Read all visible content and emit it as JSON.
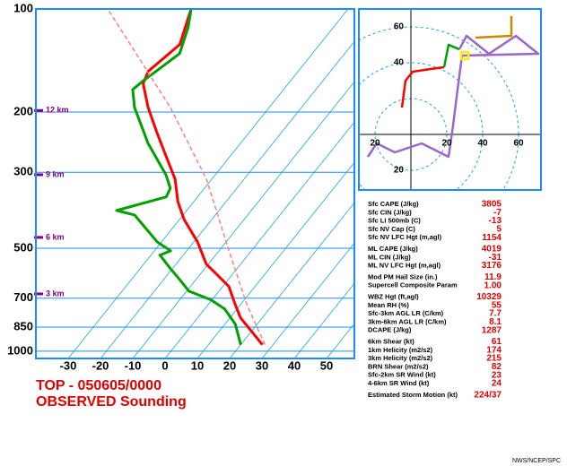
{
  "title": "TOP - 050605/0000",
  "subtitle": "OBSERVED Sounding",
  "credit": "NWS/NCEP/SPC",
  "chart_data": [
    {
      "type": "skewt",
      "log_scale": true,
      "ylim": [
        1050,
        100
      ],
      "yticks": [
        100,
        200,
        300,
        500,
        700,
        850,
        1000
      ],
      "xlim": [
        -40,
        58.6
      ],
      "xticks": [
        -30,
        -20,
        -10,
        0,
        10,
        20,
        30,
        40,
        50
      ],
      "heights": [
        {
          "pressure": 198,
          "label": "12 km"
        },
        {
          "pressure": 305,
          "label": "9 km"
        },
        {
          "pressure": 465,
          "label": "6 km"
        },
        {
          "pressure": 680,
          "label": "3 km"
        }
      ],
      "series": [
        {
          "color": "#ff0000",
          "pressure": [
            957,
            799,
            730,
            647,
            591,
            557,
            479,
            412,
            365,
            314,
            270,
            232,
            194,
            165,
            152,
            127,
            100
          ],
          "values": [
            26.7,
            13.3,
            8.3,
            1.9,
            -5.6,
            -10.6,
            -18.9,
            -28.6,
            -35,
            -41.4,
            -49.7,
            -58,
            -67.5,
            -75,
            -76.4,
            -73.3,
            -78.6
          ]
        },
        {
          "color": "#00a000",
          "pressure": [
            957,
            833,
            752,
            708,
            667,
            617,
            574,
            524,
            509,
            479,
            400,
            388,
            354,
            334,
            305,
            247,
            194,
            172,
            162,
            135,
            113,
            100
          ],
          "values": [
            20,
            13.2,
            6.1,
            -0.3,
            -9.4,
            -15.1,
            -20.6,
            -27.2,
            -25,
            -31.4,
            -45,
            -51.7,
            -39.7,
            -40.6,
            -45.3,
            -58.6,
            -71.7,
            -76.7,
            -75.6,
            -71.1,
            -75,
            -78.6
          ]
        },
        {
          "color": "#ff8080",
          "dashed": true,
          "pressure": [
            957,
            730,
            509,
            314,
            194,
            100
          ],
          "values": [
            27.5,
            11.9,
            -6.9,
            -31.7,
            -60.6,
            -104.4
          ]
        }
      ]
    },
    {
      "type": "hodograph",
      "xlim": [
        -29,
        72.5
      ],
      "ylim": [
        -31,
        70
      ],
      "xticks": [
        {
          "value": -20,
          "label": "20"
        },
        20,
        40,
        60
      ],
      "yticks": [
        60,
        40,
        {
          "value": -20,
          "label": "20"
        }
      ],
      "segments": [
        {
          "color": "#ff0000",
          "u": [
            -5,
            -3,
            1,
            11,
            18.5
          ],
          "v": [
            15,
            30,
            35,
            36.5,
            37.5
          ]
        },
        {
          "color": "#00a000",
          "u": [
            18.5,
            21,
            27
          ],
          "v": [
            37.5,
            50,
            47.5
          ]
        },
        {
          "color": "#9966cc",
          "u": [
            27,
            31,
            43.5,
            58.5,
            71,
            28.5,
            26,
            23.5,
            21,
            6,
            -9,
            -19,
            -24
          ],
          "v": [
            47.5,
            55,
            45,
            55,
            45,
            44,
            25,
            5,
            -12.5,
            -5,
            -10,
            -5,
            -12.5
          ]
        },
        {
          "color": "#cc8800",
          "u": [
            36,
            56,
            56
          ],
          "v": [
            54,
            55,
            66
          ]
        }
      ],
      "storm_motion": {
        "u": 30,
        "v": 44,
        "color": "#ffee00"
      }
    }
  ],
  "parameters": [
    [
      {
        "label": "Sfc CAPE (J/kg)",
        "value": "3805"
      },
      {
        "label": "Sfc CIN (J/kg)",
        "value": "-7"
      },
      {
        "label": "Sfc LI 500mb (C)",
        "value": "-13"
      },
      {
        "label": "Sfc NV Cap (C)",
        "value": "5"
      },
      {
        "label": "Sfc NV LFC Hgt (m,agl)",
        "value": "1154"
      }
    ],
    [
      {
        "label": "ML CAPE (J/kg)",
        "value": "4019"
      },
      {
        "label": "ML CIN (J/kg)",
        "value": "-31"
      },
      {
        "label": "ML NV LFC Hgt (m,agl)",
        "value": "3176"
      }
    ],
    [
      {
        "label": "Mod PM Hail Size (in.)",
        "value": "11.9"
      },
      {
        "label": "Supercell Composite Param",
        "value": "1.00"
      }
    ],
    [
      {
        "label": "WBZ Hgt (ft,agl)",
        "value": "10329"
      },
      {
        "label": "Mean RH (%)",
        "value": "55"
      },
      {
        "label": "Sfc-3km AGL LR (C/km)",
        "value": "7.7"
      },
      {
        "label": "3km-6km AGL LR (C/km)",
        "value": "8.1"
      },
      {
        "label": "DCAPE (J/kg)",
        "value": "1287"
      }
    ],
    [
      {
        "label": "6km Shear (kt)",
        "value": "61"
      },
      {
        "label": "1km Helicity (m2/s2)",
        "value": "174"
      },
      {
        "label": "3km Helicity (m2/s2)",
        "value": "215"
      },
      {
        "label": "BRN Shear (m2/s2)",
        "value": "82"
      },
      {
        "label": "Sfc-2km SR Wind (kt)",
        "value": "23"
      },
      {
        "label": "4-6km SR Wind (kt)",
        "value": "24"
      }
    ],
    [
      {
        "label": "Estimated Storm Motion (kt)",
        "value": "224/37"
      }
    ]
  ]
}
